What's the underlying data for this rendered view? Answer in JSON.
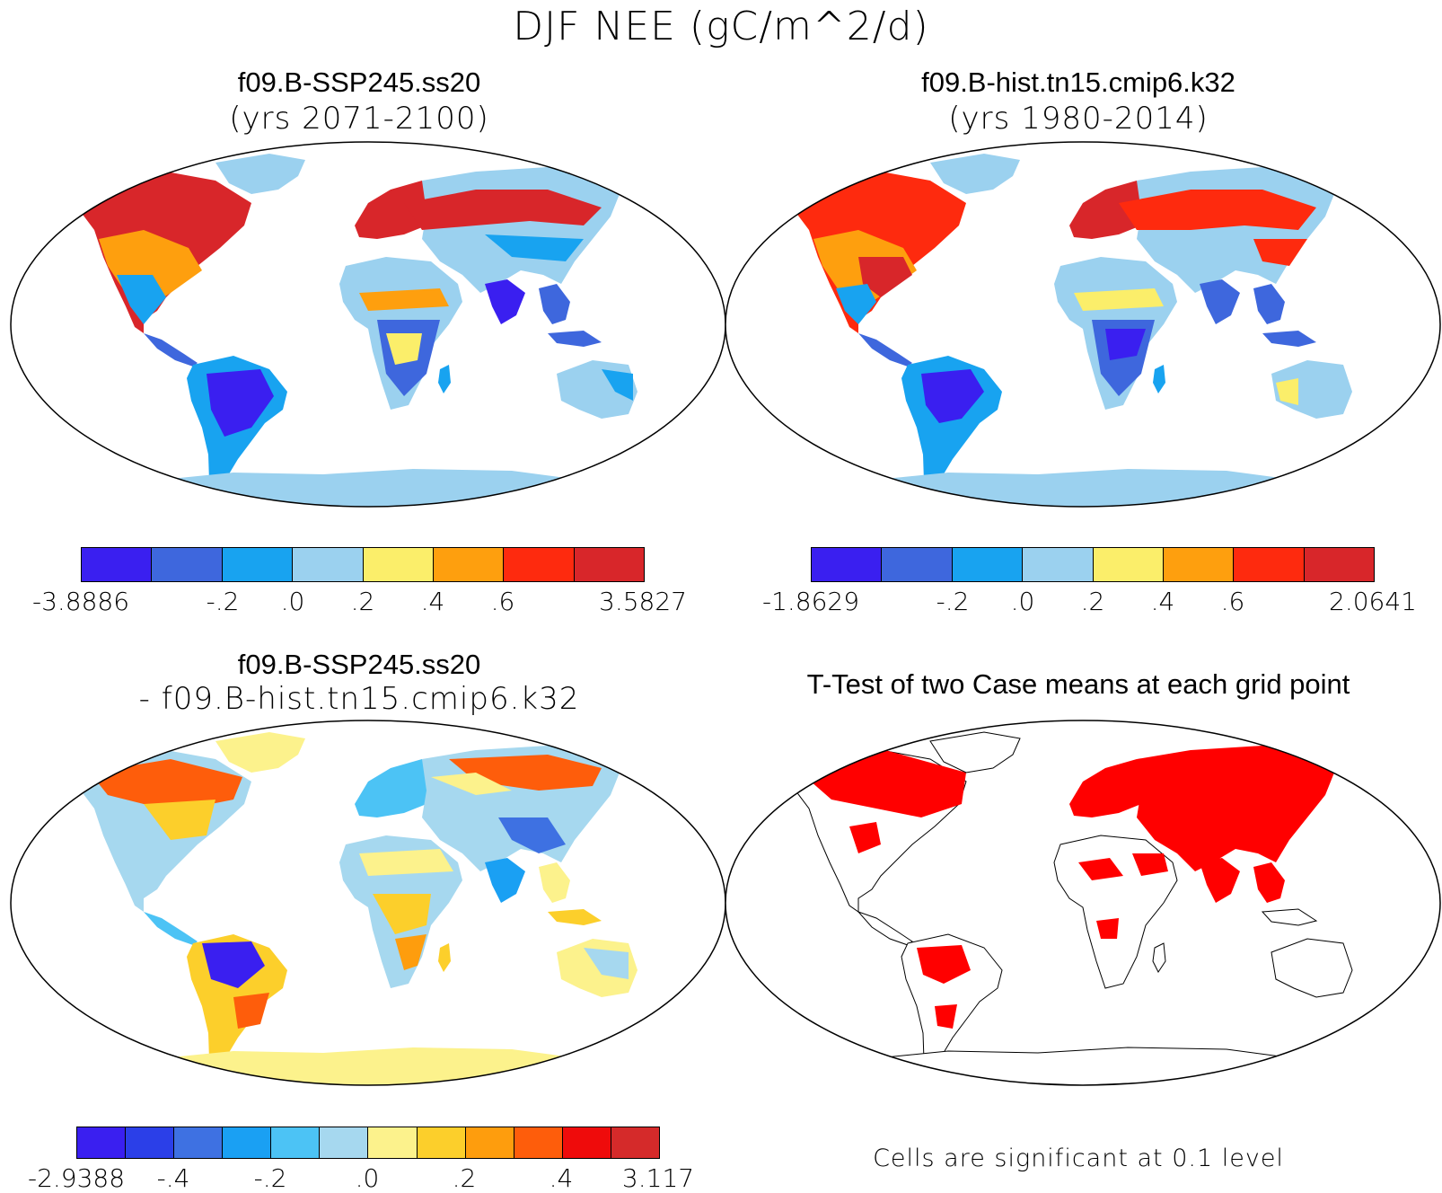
{
  "title": "DJF NEE (gC/m^2/d)",
  "panels": [
    {
      "title": "f09.B-SSP245.ss20",
      "subtitle": "(yrs 2071-2100)",
      "colorbar": {
        "colors": [
          "#3a1ff0",
          "#3e67dd",
          "#18a3f0",
          "#9bd1ef",
          "#fbee6a",
          "#fe9f0e",
          "#fe2a0e",
          "#d8262a"
        ],
        "labels": [
          "-3.8886",
          "-.2",
          ".0",
          ".2",
          ".4",
          ".6",
          "3.5827"
        ]
      }
    },
    {
      "title": "f09.B-hist.tn15.cmip6.k32",
      "subtitle": "(yrs 1980-2014)",
      "colorbar": {
        "colors": [
          "#3a1ff0",
          "#3e67dd",
          "#18a3f0",
          "#9bd1ef",
          "#fbee6a",
          "#fe9f0e",
          "#fe2a0e",
          "#d8262a"
        ],
        "labels": [
          "-1.8629",
          "-.2",
          ".0",
          ".2",
          ".4",
          ".6",
          "2.0641"
        ]
      }
    },
    {
      "title": "f09.B-SSP245.ss20",
      "subtitle": "- f09.B-hist.tn15.cmip6.k32",
      "colorbar": {
        "colors": [
          "#3a1ff0",
          "#2b3fe8",
          "#3e71e2",
          "#1aa0f3",
          "#4cc3f5",
          "#a6d8ef",
          "#fcf28c",
          "#fccf2b",
          "#fe9d0d",
          "#fe5d0b",
          "#ef0b0b",
          "#d52a2a"
        ],
        "labels": [
          "-2.9388",
          "-.4",
          "-.2",
          ".0",
          ".2",
          ".4",
          "3.117"
        ]
      }
    },
    {
      "title": "T-Test of two Case means at each grid point",
      "note": "Cells are significant at 0.1 level"
    }
  ],
  "chart_data": [
    {
      "type": "heatmap",
      "title": "f09.B-SSP245.ss20",
      "subtitle": "(yrs 2071-2100)",
      "colorbar_levels": [
        "-3.8886",
        "-.2",
        ".0",
        ".2",
        ".4",
        ".6",
        "3.5827"
      ],
      "colorbar_min": -3.8886,
      "colorbar_max": 3.5827
    },
    {
      "type": "heatmap",
      "title": "f09.B-hist.tn15.cmip6.k32",
      "subtitle": "(yrs 1980-2014)",
      "colorbar_levels": [
        "-1.8629",
        "-.2",
        ".0",
        ".2",
        ".4",
        ".6",
        "2.0641"
      ],
      "colorbar_min": -1.8629,
      "colorbar_max": 2.0641
    },
    {
      "type": "heatmap",
      "title": "f09.B-SSP245.ss20 - f09.B-hist.tn15.cmip6.k32",
      "colorbar_levels": [
        "-2.9388",
        "-.4",
        "-.2",
        ".0",
        ".2",
        ".4",
        "3.117"
      ],
      "colorbar_min": -2.9388,
      "colorbar_max": 3.117
    },
    {
      "type": "heatmap",
      "title": "T-Test of two Case means at each grid point",
      "note": "Cells are significant at 0.1 level",
      "significant_color": "#ff0000"
    }
  ]
}
